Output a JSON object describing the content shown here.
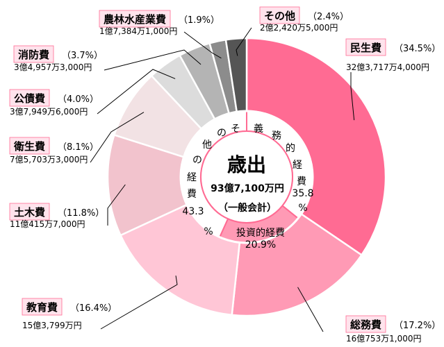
{
  "chart_data": {
    "type": "pie",
    "center": {
      "title": "歳出",
      "total": "93億7,100万円",
      "note": "（一般会計）"
    },
    "outer_series": [
      {
        "name": "民生費",
        "percent": 34.5,
        "percent_label": "（34.5%）",
        "amount": "32億3,717万4,000円",
        "color": "#FF6B93"
      },
      {
        "name": "総務費",
        "percent": 17.2,
        "percent_label": "（17.2%）",
        "amount": "16億753万1,000円",
        "color": "#FF9AB5"
      },
      {
        "name": "教育費",
        "percent": 16.4,
        "percent_label": "（16.4%）",
        "amount": "15億3,799万円",
        "color": "#FFC6D6"
      },
      {
        "name": "土木費",
        "percent": 11.8,
        "percent_label": "（11.8%）",
        "amount": "11億415万7,000円",
        "color": "#F2C3CD"
      },
      {
        "name": "衛生費",
        "percent": 8.1,
        "percent_label": "（8.1%）",
        "amount": "7億5,703万3,000円",
        "color": "#F2E2E4"
      },
      {
        "name": "公債費",
        "percent": 4.0,
        "percent_label": "（4.0%）",
        "amount": "3億7,949万6,000円",
        "color": "#DCDCDC"
      },
      {
        "name": "消防費",
        "percent": 3.7,
        "percent_label": "（3.7%）",
        "amount": "3億4,957万3,000円",
        "color": "#B4B4B4"
      },
      {
        "name": "農林水産業費",
        "percent": 1.9,
        "percent_label": "（1.9%）",
        "amount": "1億7,384万1,000円",
        "color": "#8C8C8C"
      },
      {
        "name": "その他",
        "percent": 2.4,
        "percent_label": "（2.4%）",
        "amount": "2億2,420万5,000円",
        "color": "#555555"
      }
    ],
    "inner_series": [
      {
        "name": "義務的経費",
        "percent": 35.8,
        "percent_label": "35.8%",
        "color": "#FFFFFF"
      },
      {
        "name": "投資的経費",
        "percent": 20.9,
        "percent_label": "20.9%",
        "color": "#FF9AB5"
      },
      {
        "name": "その他の経費",
        "percent": 43.3,
        "percent_label": "43.3%",
        "color": "#FFFFFF"
      }
    ]
  }
}
